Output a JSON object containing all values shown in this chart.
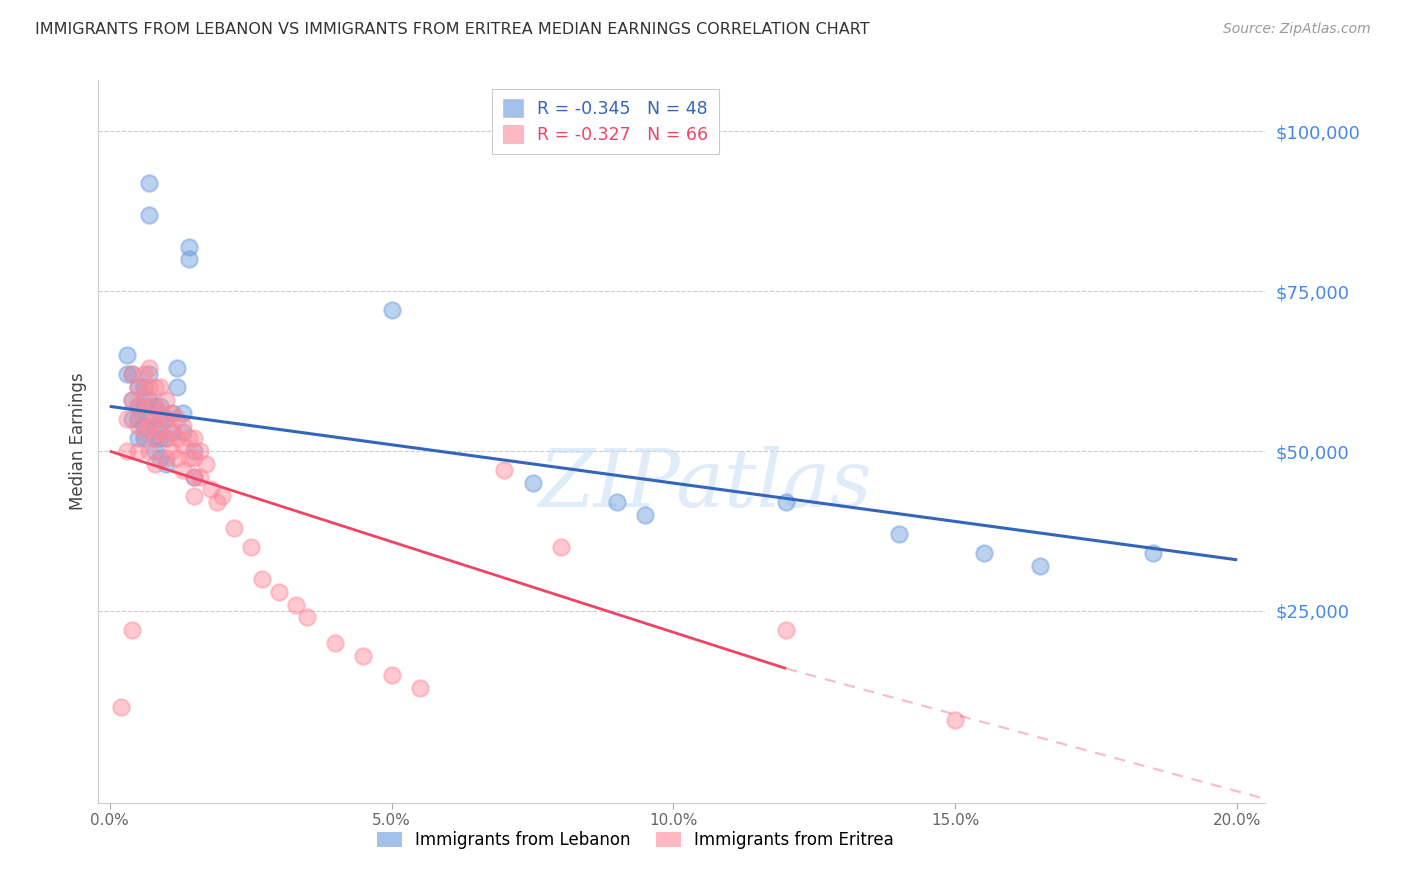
{
  "title": "IMMIGRANTS FROM LEBANON VS IMMIGRANTS FROM ERITREA MEDIAN EARNINGS CORRELATION CHART",
  "source": "Source: ZipAtlas.com",
  "ylabel": "Median Earnings",
  "xlabel_ticks": [
    "0.0%",
    "5.0%",
    "10.0%",
    "15.0%",
    "20.0%"
  ],
  "xlabel_values": [
    0.0,
    0.05,
    0.1,
    0.15,
    0.2
  ],
  "ylim": [
    -5000,
    108000
  ],
  "xlim": [
    -0.002,
    0.205
  ],
  "watermark": "ZIPatlas",
  "legend_r": [
    "R = -0.345",
    "R = -0.327"
  ],
  "legend_n": [
    "N = 48",
    "N = 66"
  ],
  "legend_labels": [
    "Immigrants from Lebanon",
    "Immigrants from Eritrea"
  ],
  "blue_color": "#6699dd",
  "pink_color": "#ff8899",
  "blue_line_color": "#3366bb",
  "pink_line_color": "#ee4466",
  "lebanon_x": [
    0.003,
    0.003,
    0.004,
    0.004,
    0.004,
    0.005,
    0.005,
    0.005,
    0.005,
    0.006,
    0.006,
    0.006,
    0.006,
    0.007,
    0.007,
    0.007,
    0.007,
    0.007,
    0.008,
    0.008,
    0.008,
    0.008,
    0.009,
    0.009,
    0.009,
    0.009,
    0.01,
    0.01,
    0.01,
    0.011,
    0.011,
    0.012,
    0.012,
    0.013,
    0.013,
    0.014,
    0.014,
    0.015,
    0.015,
    0.05,
    0.075,
    0.09,
    0.095,
    0.12,
    0.14,
    0.155,
    0.165,
    0.185
  ],
  "lebanon_y": [
    65000,
    62000,
    62000,
    58000,
    55000,
    60000,
    57000,
    55000,
    52000,
    60000,
    57000,
    54000,
    52000,
    92000,
    87000,
    62000,
    58000,
    55000,
    57000,
    54000,
    52000,
    50000,
    57000,
    55000,
    52000,
    49000,
    55000,
    52000,
    48000,
    56000,
    53000,
    63000,
    60000,
    56000,
    53000,
    82000,
    80000,
    50000,
    46000,
    72000,
    45000,
    42000,
    40000,
    42000,
    37000,
    34000,
    32000,
    34000
  ],
  "eritrea_x": [
    0.002,
    0.003,
    0.003,
    0.004,
    0.004,
    0.004,
    0.005,
    0.005,
    0.005,
    0.005,
    0.006,
    0.006,
    0.006,
    0.006,
    0.007,
    0.007,
    0.007,
    0.007,
    0.007,
    0.008,
    0.008,
    0.008,
    0.008,
    0.008,
    0.009,
    0.009,
    0.009,
    0.01,
    0.01,
    0.01,
    0.01,
    0.011,
    0.011,
    0.011,
    0.012,
    0.012,
    0.012,
    0.013,
    0.013,
    0.013,
    0.014,
    0.014,
    0.015,
    0.015,
    0.015,
    0.015,
    0.016,
    0.016,
    0.017,
    0.018,
    0.019,
    0.02,
    0.022,
    0.025,
    0.027,
    0.03,
    0.033,
    0.035,
    0.04,
    0.045,
    0.05,
    0.055,
    0.07,
    0.08,
    0.12,
    0.15
  ],
  "eritrea_y": [
    10000,
    55000,
    50000,
    62000,
    58000,
    22000,
    60000,
    57000,
    54000,
    50000,
    62000,
    59000,
    56000,
    53000,
    63000,
    60000,
    57000,
    54000,
    50000,
    60000,
    57000,
    55000,
    52000,
    48000,
    60000,
    56000,
    53000,
    58000,
    55000,
    52000,
    49000,
    56000,
    53000,
    50000,
    55000,
    52000,
    49000,
    54000,
    51000,
    47000,
    52000,
    49000,
    52000,
    49000,
    46000,
    43000,
    50000,
    46000,
    48000,
    44000,
    42000,
    43000,
    38000,
    35000,
    30000,
    28000,
    26000,
    24000,
    20000,
    18000,
    15000,
    13000,
    47000,
    35000,
    22000,
    8000
  ]
}
